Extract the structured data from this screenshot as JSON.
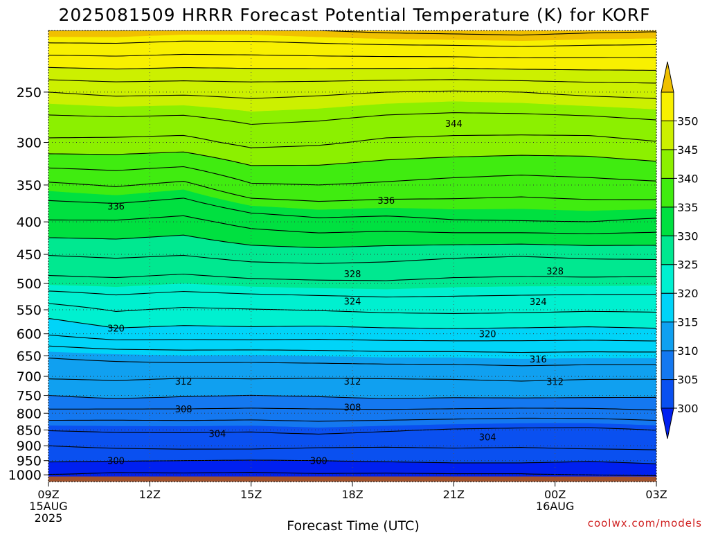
{
  "chart_data": {
    "type": "heatmap",
    "title": "2025081509 HRRR Forecast Potential Temperature (K) for KORF",
    "xlabel": "Forecast Time (UTC)",
    "ylabel": "",
    "credit": "coolwx.com/models",
    "x_ticks": [
      {
        "hours": 0,
        "lines": [
          "09Z",
          "15AUG",
          "2025"
        ]
      },
      {
        "hours": 3,
        "lines": [
          "12Z"
        ]
      },
      {
        "hours": 6,
        "lines": [
          "15Z"
        ]
      },
      {
        "hours": 9,
        "lines": [
          "18Z"
        ]
      },
      {
        "hours": 12,
        "lines": [
          "21Z"
        ]
      },
      {
        "hours": 15,
        "lines": [
          "00Z",
          "16AUG"
        ]
      },
      {
        "hours": 18,
        "lines": [
          "03Z"
        ]
      }
    ],
    "xlim_hours": [
      0,
      18
    ],
    "y_ticks": [
      250,
      300,
      350,
      400,
      450,
      500,
      550,
      600,
      650,
      700,
      750,
      800,
      850,
      900,
      950,
      1000
    ],
    "ylim_hPa": [
      1025,
      200
    ],
    "y_scale": "log",
    "colorbar": {
      "ticks": [
        300,
        305,
        310,
        315,
        320,
        325,
        330,
        335,
        340,
        345,
        350
      ],
      "bins": [
        {
          "from": 295,
          "to": 300,
          "color": "#0020f0"
        },
        {
          "from": 300,
          "to": 305,
          "color": "#0a50f0"
        },
        {
          "from": 305,
          "to": 310,
          "color": "#1478f0"
        },
        {
          "from": 310,
          "to": 315,
          "color": "#10a0f0"
        },
        {
          "from": 315,
          "to": 320,
          "color": "#00d4f8"
        },
        {
          "from": 320,
          "to": 325,
          "color": "#00f0d0"
        },
        {
          "from": 325,
          "to": 330,
          "color": "#00e890"
        },
        {
          "from": 330,
          "to": 335,
          "color": "#00e040"
        },
        {
          "from": 335,
          "to": 340,
          "color": "#40ec10"
        },
        {
          "from": 340,
          "to": 345,
          "color": "#8cf000"
        },
        {
          "from": 345,
          "to": 350,
          "color": "#ccf000"
        },
        {
          "from": 350,
          "to": 355,
          "color": "#f8f000"
        },
        {
          "from": 355,
          "to": 360,
          "color": "#f0c000"
        }
      ]
    },
    "contour_interval": 2,
    "contour_labels": [
      {
        "value": 344,
        "hours": 12.0,
        "p": 280
      },
      {
        "value": 336,
        "hours": 2.0,
        "p": 378
      },
      {
        "value": 336,
        "hours": 10.0,
        "p": 370
      },
      {
        "value": 328,
        "hours": 9.0,
        "p": 483
      },
      {
        "value": 328,
        "hours": 15.0,
        "p": 478
      },
      {
        "value": 324,
        "hours": 9.0,
        "p": 533
      },
      {
        "value": 324,
        "hours": 14.5,
        "p": 534
      },
      {
        "value": 320,
        "hours": 2.0,
        "p": 588
      },
      {
        "value": 320,
        "hours": 13.0,
        "p": 600
      },
      {
        "value": 316,
        "hours": 14.5,
        "p": 657
      },
      {
        "value": 312,
        "hours": 4.0,
        "p": 712
      },
      {
        "value": 312,
        "hours": 9.0,
        "p": 712
      },
      {
        "value": 312,
        "hours": 15.0,
        "p": 713
      },
      {
        "value": 308,
        "hours": 4.0,
        "p": 788
      },
      {
        "value": 308,
        "hours": 9.0,
        "p": 783
      },
      {
        "value": 304,
        "hours": 5.0,
        "p": 861
      },
      {
        "value": 304,
        "hours": 13.0,
        "p": 872
      },
      {
        "value": 300,
        "hours": 2.0,
        "p": 950
      },
      {
        "value": 300,
        "hours": 8.0,
        "p": 950
      }
    ],
    "profiles": [
      {
        "p": 1025,
        "theta": [
          294.0,
          294.0,
          294.0,
          294.0,
          294.0,
          294.0,
          294.0,
          294.0,
          294.0,
          294.0
        ]
      },
      {
        "p": 1000,
        "theta": [
          298.0,
          297.6,
          297.7,
          297.6,
          297.8,
          297.7,
          297.8,
          297.8,
          298.2,
          298.6
        ]
      },
      {
        "p": 950,
        "theta": [
          300.2,
          300.1,
          300.0,
          299.9,
          300.0,
          300.2,
          300.4,
          300.4,
          300.1,
          300.4
        ]
      },
      {
        "p": 900,
        "theta": [
          302.0,
          302.4,
          302.6,
          302.6,
          302.3,
          302.2,
          302.3,
          302.2,
          302.5,
          302.6
        ]
      },
      {
        "p": 850,
        "theta": [
          304.1,
          304.3,
          304.3,
          304.2,
          304.6,
          304.2,
          303.8,
          303.6,
          303.5,
          304.0
        ]
      },
      {
        "p": 800,
        "theta": [
          307.4,
          307.2,
          307.3,
          307.2,
          307.3,
          307.3,
          307.2,
          307.0,
          307.1,
          307.5
        ]
      },
      {
        "p": 750,
        "theta": [
          310.0,
          310.6,
          310.2,
          310.0,
          310.2,
          310.6,
          310.4,
          310.5,
          310.4,
          310.3
        ]
      },
      {
        "p": 700,
        "theta": [
          312.3,
          312.4,
          312.2,
          312.3,
          312.2,
          312.2,
          312.3,
          312.5,
          312.3,
          312.3
        ]
      },
      {
        "p": 650,
        "theta": [
          314.2,
          314.6,
          314.9,
          314.8,
          315.0,
          315.2,
          315.2,
          315.4,
          315.3,
          315.3
        ]
      },
      {
        "p": 600,
        "theta": [
          318.2,
          319.3,
          319.1,
          319.2,
          319.0,
          319.2,
          319.3,
          319.2,
          319.1,
          319.3
        ]
      },
      {
        "p": 550,
        "theta": [
          321.0,
          322.2,
          321.7,
          321.9,
          322.1,
          322.4,
          322.5,
          322.4,
          322.2,
          322.3
        ]
      },
      {
        "p": 500,
        "theta": [
          325.2,
          325.4,
          325.0,
          325.4,
          325.6,
          325.7,
          325.4,
          325.3,
          325.3,
          325.2
        ]
      },
      {
        "p": 450,
        "theta": [
          328.1,
          328.4,
          328.1,
          328.9,
          329.1,
          328.8,
          328.4,
          328.2,
          328.5,
          328.6
        ]
      },
      {
        "p": 400,
        "theta": [
          331.8,
          331.8,
          331.3,
          332.8,
          333.5,
          333.3,
          333.8,
          333.9,
          334.0,
          333.6
        ]
      },
      {
        "p": 350,
        "theta": [
          335.6,
          336.2,
          335.5,
          337.8,
          338.0,
          337.7,
          337.3,
          337.0,
          337.3,
          337.6
        ]
      },
      {
        "p": 300,
        "theta": [
          341.6,
          341.5,
          341.3,
          342.6,
          342.3,
          341.6,
          341.4,
          341.3,
          341.3,
          341.9
        ]
      },
      {
        "p": 250,
        "theta": [
          346.0,
          346.4,
          346.3,
          346.5,
          346.3,
          346.0,
          345.8,
          346.0,
          346.4,
          346.6
        ]
      },
      {
        "p": 200,
        "theta": [
          356.0,
          356.0,
          355.6,
          355.6,
          356.0,
          356.4,
          356.6,
          356.8,
          356.4,
          356.2
        ]
      }
    ],
    "profile_hours": [
      0,
      2,
      4,
      6,
      8,
      10,
      12,
      14,
      16,
      18
    ],
    "ground_color": "#a0522d",
    "grid": "dotted",
    "legend": "right"
  }
}
